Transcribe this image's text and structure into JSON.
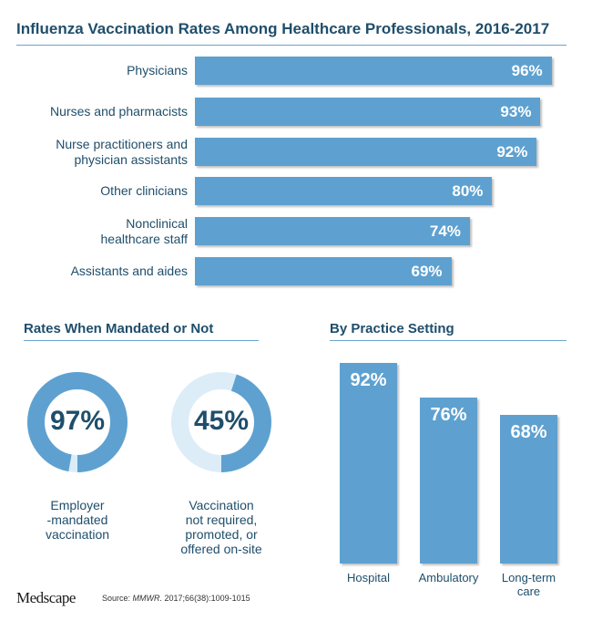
{
  "title": "Influenza Vaccination Rates Among Healthcare Professionals, 2016-2017",
  "chart_data": [
    {
      "type": "bar",
      "orientation": "horizontal",
      "title": "Influenza Vaccination Rates Among Healthcare Professionals, 2016-2017",
      "categories": [
        [
          "Physicians"
        ],
        [
          "Nurses and pharmacists"
        ],
        [
          "Nurse practitioners and",
          "physician assistants"
        ],
        [
          "Other clinicians"
        ],
        [
          "Nonclinical",
          "healthcare staff"
        ],
        [
          "Assistants and aides"
        ]
      ],
      "values": [
        96,
        93,
        92,
        80,
        74,
        69
      ],
      "value_labels": [
        "96%",
        "93%",
        "92%",
        "80%",
        "74%",
        "69%"
      ],
      "xlim": [
        0,
        100
      ],
      "color": "#5ea1d0"
    },
    {
      "type": "pie",
      "title": "Rates When Mandated or Not",
      "items": [
        {
          "value": 97,
          "value_label": "97%",
          "label": [
            "Employer",
            "-mandated",
            "vaccination"
          ]
        },
        {
          "value": 45,
          "value_label": "45%",
          "label": [
            "Vaccination",
            "not required,",
            "promoted, or",
            "offered on-site"
          ]
        }
      ],
      "colors": {
        "filled": "#5ea1d0",
        "empty": "#dcedf8"
      }
    },
    {
      "type": "bar",
      "orientation": "vertical",
      "title": "By Practice Setting",
      "categories": [
        [
          "Hospital"
        ],
        [
          "Ambulatory"
        ],
        [
          "Long-term",
          "care"
        ]
      ],
      "values": [
        92,
        76,
        68
      ],
      "value_labels": [
        "92%",
        "76%",
        "68%"
      ],
      "ylim": [
        0,
        100
      ],
      "color": "#5ea1d0"
    }
  ],
  "footer": {
    "logo": "Medscape",
    "source_prefix": "Source: ",
    "source_journal": "MMWR.",
    "source_citation": " 2017;66(38):1009-1015"
  }
}
